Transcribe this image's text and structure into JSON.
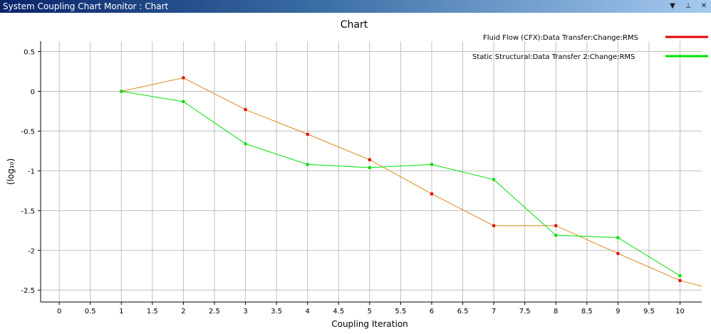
{
  "window": {
    "title": "System Coupling Chart Monitor : Chart",
    "controls": [
      {
        "name": "menu-dropdown",
        "glyph": "▼"
      },
      {
        "name": "pin",
        "glyph": "⊥"
      },
      {
        "name": "close",
        "glyph": "✕"
      }
    ]
  },
  "colors": {
    "series_1": "#e00000",
    "series_1_line": "#d98a1a",
    "series_2": "#00e000",
    "grid": "#c0c0c0"
  },
  "chart_data": {
    "type": "line",
    "title": "Chart",
    "xlabel": "Coupling Iteration",
    "ylabel": "(log₁₀)",
    "xlim": [
      -0.3,
      10.35
    ],
    "ylim": [
      -2.65,
      0.63
    ],
    "xticks": [
      0,
      0.5,
      1,
      1.5,
      2,
      2.5,
      3,
      3.5,
      4,
      4.5,
      5,
      5.5,
      6,
      6.5,
      7,
      7.5,
      8,
      8.5,
      9,
      9.5,
      10
    ],
    "xtick_labels": [
      "0",
      "0.5",
      "1",
      "1.5",
      "2",
      "2.5",
      "3",
      "3.5",
      "4",
      "4.5",
      "5",
      "5.5",
      "6",
      "6.5",
      "7",
      "7.5",
      "8",
      "8.5",
      "9",
      "9.5",
      "10"
    ],
    "yticks": [
      0.5,
      0,
      -0.5,
      -1,
      -1.5,
      -2,
      -2.5
    ],
    "ytick_labels": [
      "0.5",
      "0",
      "-0.5",
      "-1",
      "-1.5",
      "-2",
      "-2.5"
    ],
    "grid": true,
    "legend_position": "top-right",
    "series": [
      {
        "name": "Fluid Flow (CFX):Data Transfer:Change:RMS",
        "x": [
          1,
          2,
          3,
          4,
          5,
          6,
          7,
          8,
          9,
          10
        ],
        "y": [
          0.0,
          0.17,
          -0.23,
          -0.54,
          -0.86,
          -1.29,
          -1.69,
          -1.69,
          -2.04,
          -2.38
        ],
        "tail": {
          "x": 10.35,
          "y": -2.45
        }
      },
      {
        "name": "Static Structural:Data Transfer 2:Change:RMS",
        "x": [
          1,
          2,
          3,
          4,
          5,
          6,
          7,
          8,
          9,
          10
        ],
        "y": [
          0.0,
          -0.13,
          -0.66,
          -0.92,
          -0.96,
          -0.92,
          -1.11,
          -1.81,
          -1.84,
          -2.32
        ]
      }
    ]
  }
}
